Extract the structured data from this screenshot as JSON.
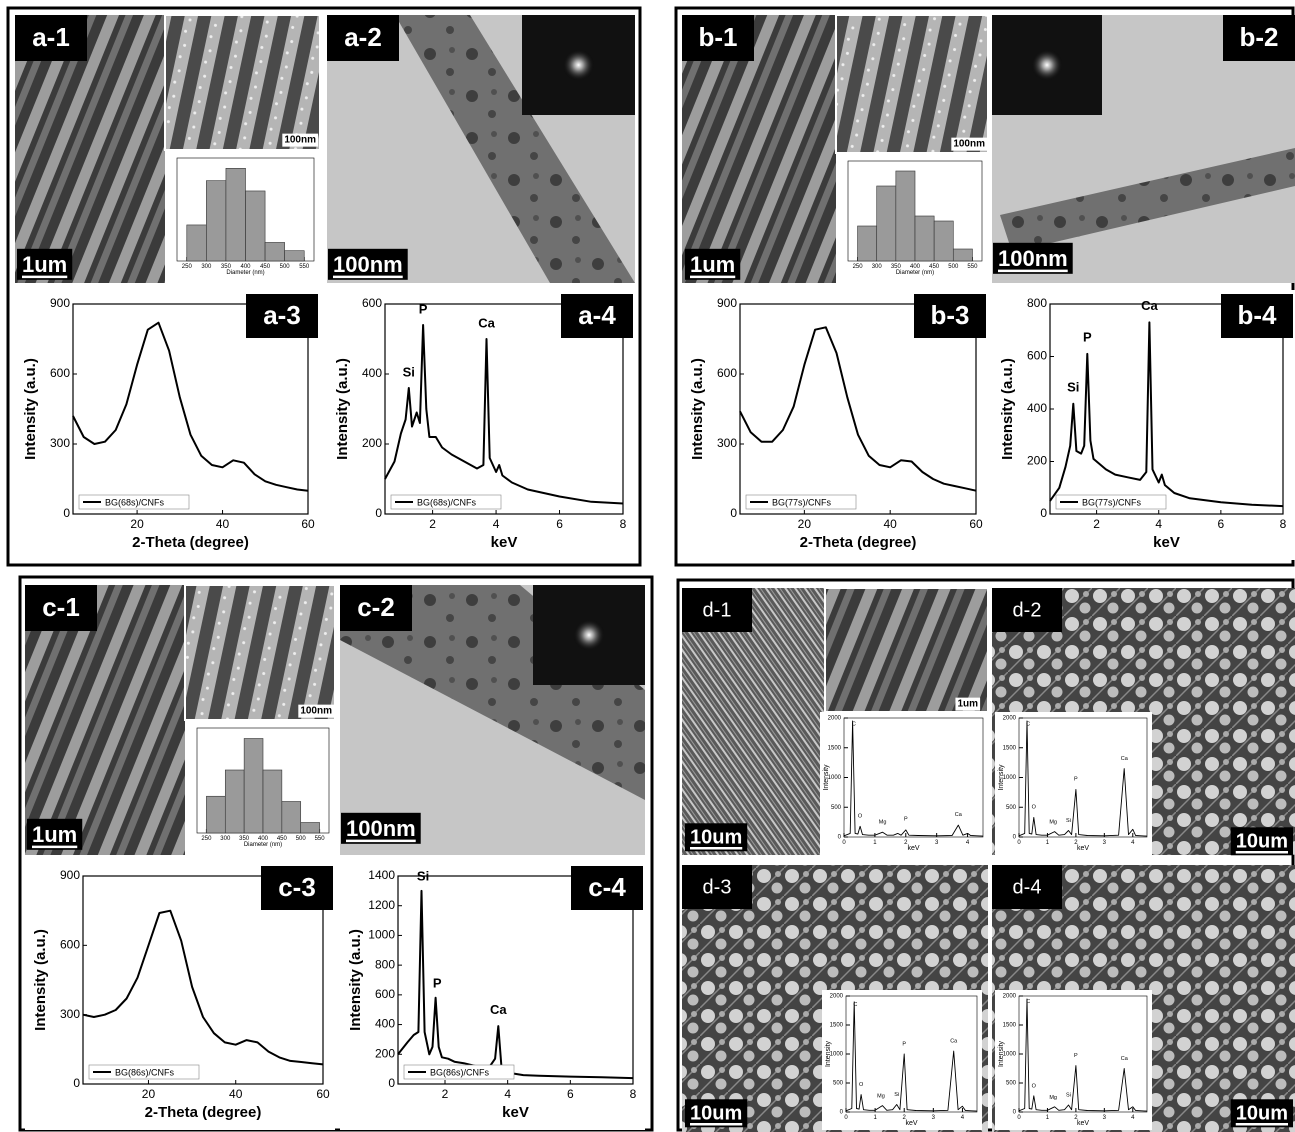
{
  "panels": [
    {
      "label": "a-1",
      "scale_bars": [
        "1um",
        "100nm"
      ]
    },
    {
      "label": "a-2",
      "scale_bars": [
        "100nm"
      ]
    },
    {
      "label": "b-1",
      "scale_bars": [
        "1um",
        "100nm"
      ]
    },
    {
      "label": "b-2",
      "scale_bars": [
        "100nm"
      ]
    },
    {
      "label": "c-1",
      "scale_bars": [
        "1um",
        "100nm"
      ]
    },
    {
      "label": "c-2",
      "scale_bars": [
        "100nm"
      ]
    },
    {
      "label": "d-1",
      "scale_bars": [
        "10um",
        "1um"
      ]
    },
    {
      "label": "d-2",
      "scale_bars": [
        "10um"
      ]
    },
    {
      "label": "d-3",
      "scale_bars": [
        "10um"
      ]
    },
    {
      "label": "d-4",
      "scale_bars": [
        "10um"
      ]
    }
  ],
  "chart_data": [
    {
      "type": "histogram",
      "xlabel": "Diameter (nm)",
      "bins": [
        250,
        300,
        350,
        400,
        450,
        500,
        550
      ],
      "values": [
        35,
        78,
        90,
        68,
        18,
        10
      ],
      "color": "#9a9a9a",
      "xlim": [
        225,
        575
      ],
      "xticks": [
        250,
        300,
        350,
        400,
        450,
        500,
        550
      ],
      "ylim": [
        0,
        100
      ]
    },
    {
      "type": "line",
      "label": "a-3",
      "xlabel": "2-Theta (degree)",
      "ylabel": "Intensity (a.u.)",
      "x": [
        5,
        7.5,
        10,
        12.5,
        15,
        17.5,
        20,
        22.5,
        25,
        27.5,
        30,
        32.5,
        35,
        37.5,
        40,
        42.5,
        45,
        47.5,
        50,
        52.5,
        55,
        57.5,
        60
      ],
      "xlim": [
        5,
        60
      ],
      "ylim": [
        0,
        900
      ],
      "xticks": [
        20,
        40,
        60
      ],
      "yticks": [
        0,
        300,
        600,
        900
      ],
      "series": [
        {
          "name": "BG(68s)/CNFs",
          "color": "#000000",
          "values": [
            420,
            330,
            300,
            310,
            360,
            470,
            640,
            790,
            820,
            700,
            500,
            340,
            250,
            210,
            200,
            230,
            220,
            170,
            140,
            125,
            115,
            105,
            100
          ]
        }
      ]
    },
    {
      "type": "line",
      "label": "a-4",
      "xlabel": "keV",
      "ylabel": "Intensity (a.u.)",
      "x": [
        0.5,
        0.8,
        1.0,
        1.15,
        1.25,
        1.35,
        1.5,
        1.6,
        1.7,
        1.8,
        1.9,
        2.1,
        2.3,
        2.6,
        3.0,
        3.4,
        3.6,
        3.7,
        3.8,
        4.0,
        4.1,
        4.2,
        4.5,
        5,
        6,
        7,
        8
      ],
      "xlim": [
        0.5,
        8
      ],
      "ylim": [
        0,
        600
      ],
      "xticks": [
        2,
        4,
        6,
        8
      ],
      "yticks": [
        0,
        200,
        400,
        600
      ],
      "series": [
        {
          "name": "BG(68s)/CNFs",
          "color": "#000000",
          "values": [
            100,
            150,
            230,
            270,
            360,
            250,
            290,
            260,
            540,
            300,
            220,
            220,
            190,
            170,
            150,
            130,
            140,
            500,
            160,
            120,
            140,
            110,
            90,
            70,
            50,
            35,
            30
          ]
        }
      ],
      "annotations": [
        {
          "text": "Si",
          "x": 1.25,
          "y": 380
        },
        {
          "text": "P",
          "x": 1.7,
          "y": 560
        },
        {
          "text": "Ca",
          "x": 3.7,
          "y": 520
        }
      ]
    },
    {
      "type": "histogram",
      "xlabel": "Diameter (nm)",
      "bins": [
        250,
        300,
        350,
        400,
        450,
        500,
        550
      ],
      "values": [
        35,
        75,
        90,
        45,
        40,
        12
      ],
      "color": "#9a9a9a",
      "xlim": [
        225,
        575
      ],
      "xticks": [
        250,
        300,
        350,
        400,
        450,
        500,
        550
      ],
      "ylim": [
        0,
        100
      ]
    },
    {
      "type": "line",
      "label": "b-3",
      "xlabel": "2-Theta (degree)",
      "ylabel": "Intensity (a.u.)",
      "x": [
        5,
        7.5,
        10,
        12.5,
        15,
        17.5,
        20,
        22.5,
        25,
        27.5,
        30,
        32.5,
        35,
        37.5,
        40,
        42.5,
        45,
        47.5,
        50,
        52.5,
        55,
        57.5,
        60
      ],
      "xlim": [
        5,
        60
      ],
      "ylim": [
        0,
        900
      ],
      "xticks": [
        20,
        40,
        60
      ],
      "yticks": [
        0,
        300,
        600,
        900
      ],
      "series": [
        {
          "name": "BG(77s)/CNFs",
          "color": "#000000",
          "values": [
            440,
            350,
            310,
            310,
            360,
            460,
            640,
            790,
            800,
            690,
            500,
            340,
            250,
            210,
            200,
            230,
            225,
            180,
            150,
            130,
            120,
            110,
            100
          ]
        }
      ]
    },
    {
      "type": "line",
      "label": "b-4",
      "xlabel": "keV",
      "ylabel": "Intensity (a.u.)",
      "x": [
        0.5,
        0.8,
        1.0,
        1.15,
        1.25,
        1.35,
        1.5,
        1.6,
        1.7,
        1.8,
        1.9,
        2.1,
        2.3,
        2.6,
        3.0,
        3.4,
        3.6,
        3.7,
        3.8,
        4.0,
        4.1,
        4.2,
        4.5,
        5,
        6,
        7,
        8
      ],
      "xlim": [
        0.5,
        8
      ],
      "ylim": [
        0,
        800
      ],
      "xticks": [
        2,
        4,
        6,
        8
      ],
      "yticks": [
        0,
        200,
        400,
        600,
        800
      ],
      "series": [
        {
          "name": "BG(77s)/CNFs",
          "color": "#000000",
          "values": [
            50,
            100,
            180,
            260,
            420,
            240,
            230,
            260,
            610,
            280,
            210,
            190,
            170,
            150,
            140,
            130,
            160,
            730,
            170,
            120,
            150,
            110,
            80,
            60,
            45,
            35,
            30
          ]
        }
      ],
      "annotations": [
        {
          "text": "Si",
          "x": 1.25,
          "y": 450
        },
        {
          "text": "P",
          "x": 1.7,
          "y": 640
        },
        {
          "text": "Ca",
          "x": 3.7,
          "y": 760
        }
      ]
    },
    {
      "type": "histogram",
      "xlabel": "Diameter (nm)",
      "bins": [
        250,
        300,
        350,
        400,
        450,
        500,
        550
      ],
      "values": [
        35,
        60,
        90,
        60,
        30,
        10
      ],
      "color": "#9a9a9a",
      "xlim": [
        225,
        575
      ],
      "xticks": [
        250,
        300,
        350,
        400,
        450,
        500,
        550
      ],
      "ylim": [
        0,
        100
      ]
    },
    {
      "type": "line",
      "label": "c-3",
      "xlabel": "2-Theta (degree)",
      "ylabel": "Intensity (a.u.)",
      "x": [
        5,
        7.5,
        10,
        12.5,
        15,
        17.5,
        20,
        22.5,
        25,
        27.5,
        30,
        32.5,
        35,
        37.5,
        40,
        42.5,
        45,
        47.5,
        50,
        52.5,
        55,
        57.5,
        60
      ],
      "xlim": [
        5,
        60
      ],
      "ylim": [
        0,
        900
      ],
      "xticks": [
        20,
        40,
        60
      ],
      "yticks": [
        0,
        300,
        600,
        900
      ],
      "series": [
        {
          "name": "BG(86s)/CNFs",
          "color": "#000000",
          "values": [
            300,
            290,
            300,
            320,
            370,
            460,
            600,
            740,
            750,
            620,
            420,
            290,
            220,
            180,
            170,
            190,
            180,
            140,
            115,
            100,
            95,
            90,
            85
          ]
        }
      ]
    },
    {
      "type": "line",
      "label": "c-4",
      "xlabel": "keV",
      "ylabel": "Intensity (a.u.)",
      "x": [
        0.5,
        0.8,
        1.0,
        1.15,
        1.25,
        1.35,
        1.5,
        1.6,
        1.7,
        1.8,
        1.9,
        2.1,
        2.3,
        2.6,
        3.0,
        3.4,
        3.6,
        3.7,
        3.8,
        4.0,
        4.1,
        4.2,
        4.5,
        5,
        6,
        7,
        8
      ],
      "xlim": [
        0.5,
        8
      ],
      "ylim": [
        0,
        1400
      ],
      "xticks": [
        2,
        4,
        6,
        8
      ],
      "yticks": [
        0,
        200,
        400,
        600,
        800,
        1000,
        1200,
        1400
      ],
      "series": [
        {
          "name": "BG(86s)/CNFs",
          "color": "#000000",
          "values": [
            200,
            280,
            330,
            350,
            1300,
            350,
            200,
            250,
            580,
            250,
            180,
            170,
            150,
            140,
            120,
            110,
            170,
            390,
            120,
            90,
            80,
            70,
            60,
            55,
            50,
            45,
            40
          ]
        }
      ],
      "annotations": [
        {
          "text": "Si",
          "x": 1.3,
          "y": 1340
        },
        {
          "text": "P",
          "x": 1.75,
          "y": 620
        },
        {
          "text": "Ca",
          "x": 3.7,
          "y": 440
        }
      ]
    },
    {
      "type": "line",
      "xlabel": "keV",
      "ylabel": "Intensity",
      "x": [
        0,
        0.2,
        0.28,
        0.36,
        0.45,
        0.52,
        0.6,
        0.8,
        1.0,
        1.25,
        1.4,
        1.6,
        1.74,
        1.85,
        2.0,
        2.1,
        2.4,
        3.0,
        3.5,
        3.7,
        3.85,
        4.0,
        4.1,
        4.3,
        4.5
      ],
      "xlim": [
        0,
        4.5
      ],
      "ylim": [
        0,
        2000
      ],
      "xticks": [
        0,
        1,
        2,
        3,
        4
      ],
      "yticks": [
        0,
        500,
        1000,
        1500,
        2000
      ],
      "series": [
        {
          "color": "#000000",
          "values": [
            20,
            60,
            1950,
            60,
            50,
            180,
            40,
            30,
            30,
            80,
            30,
            30,
            60,
            30,
            120,
            30,
            25,
            20,
            25,
            200,
            30,
            60,
            25,
            20,
            15
          ]
        }
      ],
      "annotations": [
        {
          "text": "C",
          "x": 0.32,
          "y": 1850
        },
        {
          "text": "O",
          "x": 0.52,
          "y": 300
        },
        {
          "text": "Mg",
          "x": 1.25,
          "y": 200
        },
        {
          "text": "P",
          "x": 2.0,
          "y": 250
        },
        {
          "text": "Ca",
          "x": 3.7,
          "y": 330
        }
      ]
    },
    {
      "type": "line",
      "xlabel": "keV",
      "ylabel": "Intensity",
      "x": [
        0,
        0.2,
        0.28,
        0.36,
        0.45,
        0.52,
        0.6,
        0.8,
        1.0,
        1.25,
        1.4,
        1.6,
        1.74,
        1.85,
        2.0,
        2.1,
        2.4,
        3.0,
        3.5,
        3.7,
        3.85,
        4.0,
        4.1,
        4.3,
        4.5
      ],
      "xlim": [
        0,
        4.5
      ],
      "ylim": [
        0,
        2000
      ],
      "xticks": [
        0,
        1,
        2,
        3,
        4
      ],
      "yticks": [
        0,
        500,
        1000,
        1500,
        2000
      ],
      "series": [
        {
          "color": "#000000",
          "values": [
            20,
            60,
            1950,
            60,
            50,
            330,
            40,
            30,
            30,
            90,
            30,
            40,
            110,
            40,
            800,
            40,
            25,
            20,
            30,
            1150,
            40,
            130,
            25,
            20,
            15
          ]
        }
      ],
      "annotations": [
        {
          "text": "C",
          "x": 0.32,
          "y": 1850
        },
        {
          "text": "O",
          "x": 0.52,
          "y": 450
        },
        {
          "text": "Mg",
          "x": 1.2,
          "y": 200
        },
        {
          "text": "Si",
          "x": 1.74,
          "y": 230
        },
        {
          "text": "P",
          "x": 2.0,
          "y": 920
        },
        {
          "text": "Ca",
          "x": 3.7,
          "y": 1270
        }
      ]
    },
    {
      "type": "line",
      "xlabel": "keV",
      "ylabel": "Intensity",
      "x": [
        0,
        0.2,
        0.28,
        0.36,
        0.45,
        0.52,
        0.6,
        0.8,
        1.0,
        1.25,
        1.4,
        1.6,
        1.74,
        1.85,
        2.0,
        2.1,
        2.4,
        3.0,
        3.5,
        3.7,
        3.85,
        4.0,
        4.1,
        4.3,
        4.5
      ],
      "xlim": [
        0,
        4.5
      ],
      "ylim": [
        0,
        2000
      ],
      "xticks": [
        0,
        1,
        2,
        3,
        4
      ],
      "yticks": [
        0,
        500,
        1000,
        1500,
        2000
      ],
      "series": [
        {
          "color": "#000000",
          "values": [
            20,
            60,
            1900,
            60,
            50,
            300,
            40,
            30,
            30,
            110,
            30,
            40,
            130,
            40,
            1000,
            40,
            25,
            20,
            30,
            1050,
            40,
            100,
            25,
            20,
            15
          ]
        }
      ],
      "annotations": [
        {
          "text": "C",
          "x": 0.32,
          "y": 1800
        },
        {
          "text": "O",
          "x": 0.52,
          "y": 420
        },
        {
          "text": "Mg",
          "x": 1.2,
          "y": 220
        },
        {
          "text": "Si",
          "x": 1.74,
          "y": 250
        },
        {
          "text": "P",
          "x": 2.0,
          "y": 1120
        },
        {
          "text": "Ca",
          "x": 3.7,
          "y": 1170
        }
      ]
    },
    {
      "type": "line",
      "xlabel": "keV",
      "ylabel": "Intensity",
      "x": [
        0,
        0.2,
        0.28,
        0.36,
        0.45,
        0.52,
        0.6,
        0.8,
        1.0,
        1.25,
        1.4,
        1.6,
        1.74,
        1.85,
        2.0,
        2.1,
        2.4,
        3.0,
        3.5,
        3.7,
        3.85,
        4.0,
        4.1,
        4.3,
        4.5
      ],
      "xlim": [
        0,
        4.5
      ],
      "ylim": [
        0,
        2000
      ],
      "xticks": [
        0,
        1,
        2,
        3,
        4
      ],
      "yticks": [
        0,
        500,
        1000,
        1500,
        2000
      ],
      "series": [
        {
          "color": "#000000",
          "values": [
            20,
            60,
            1950,
            60,
            50,
            280,
            40,
            30,
            30,
            90,
            30,
            40,
            120,
            40,
            800,
            40,
            25,
            20,
            30,
            750,
            40,
            90,
            25,
            20,
            15
          ]
        }
      ],
      "annotations": [
        {
          "text": "C",
          "x": 0.32,
          "y": 1850
        },
        {
          "text": "O",
          "x": 0.52,
          "y": 400
        },
        {
          "text": "Mg",
          "x": 1.2,
          "y": 200
        },
        {
          "text": "Si",
          "x": 1.74,
          "y": 240
        },
        {
          "text": "P",
          "x": 2.0,
          "y": 920
        },
        {
          "text": "Ca",
          "x": 3.7,
          "y": 870
        }
      ]
    }
  ]
}
